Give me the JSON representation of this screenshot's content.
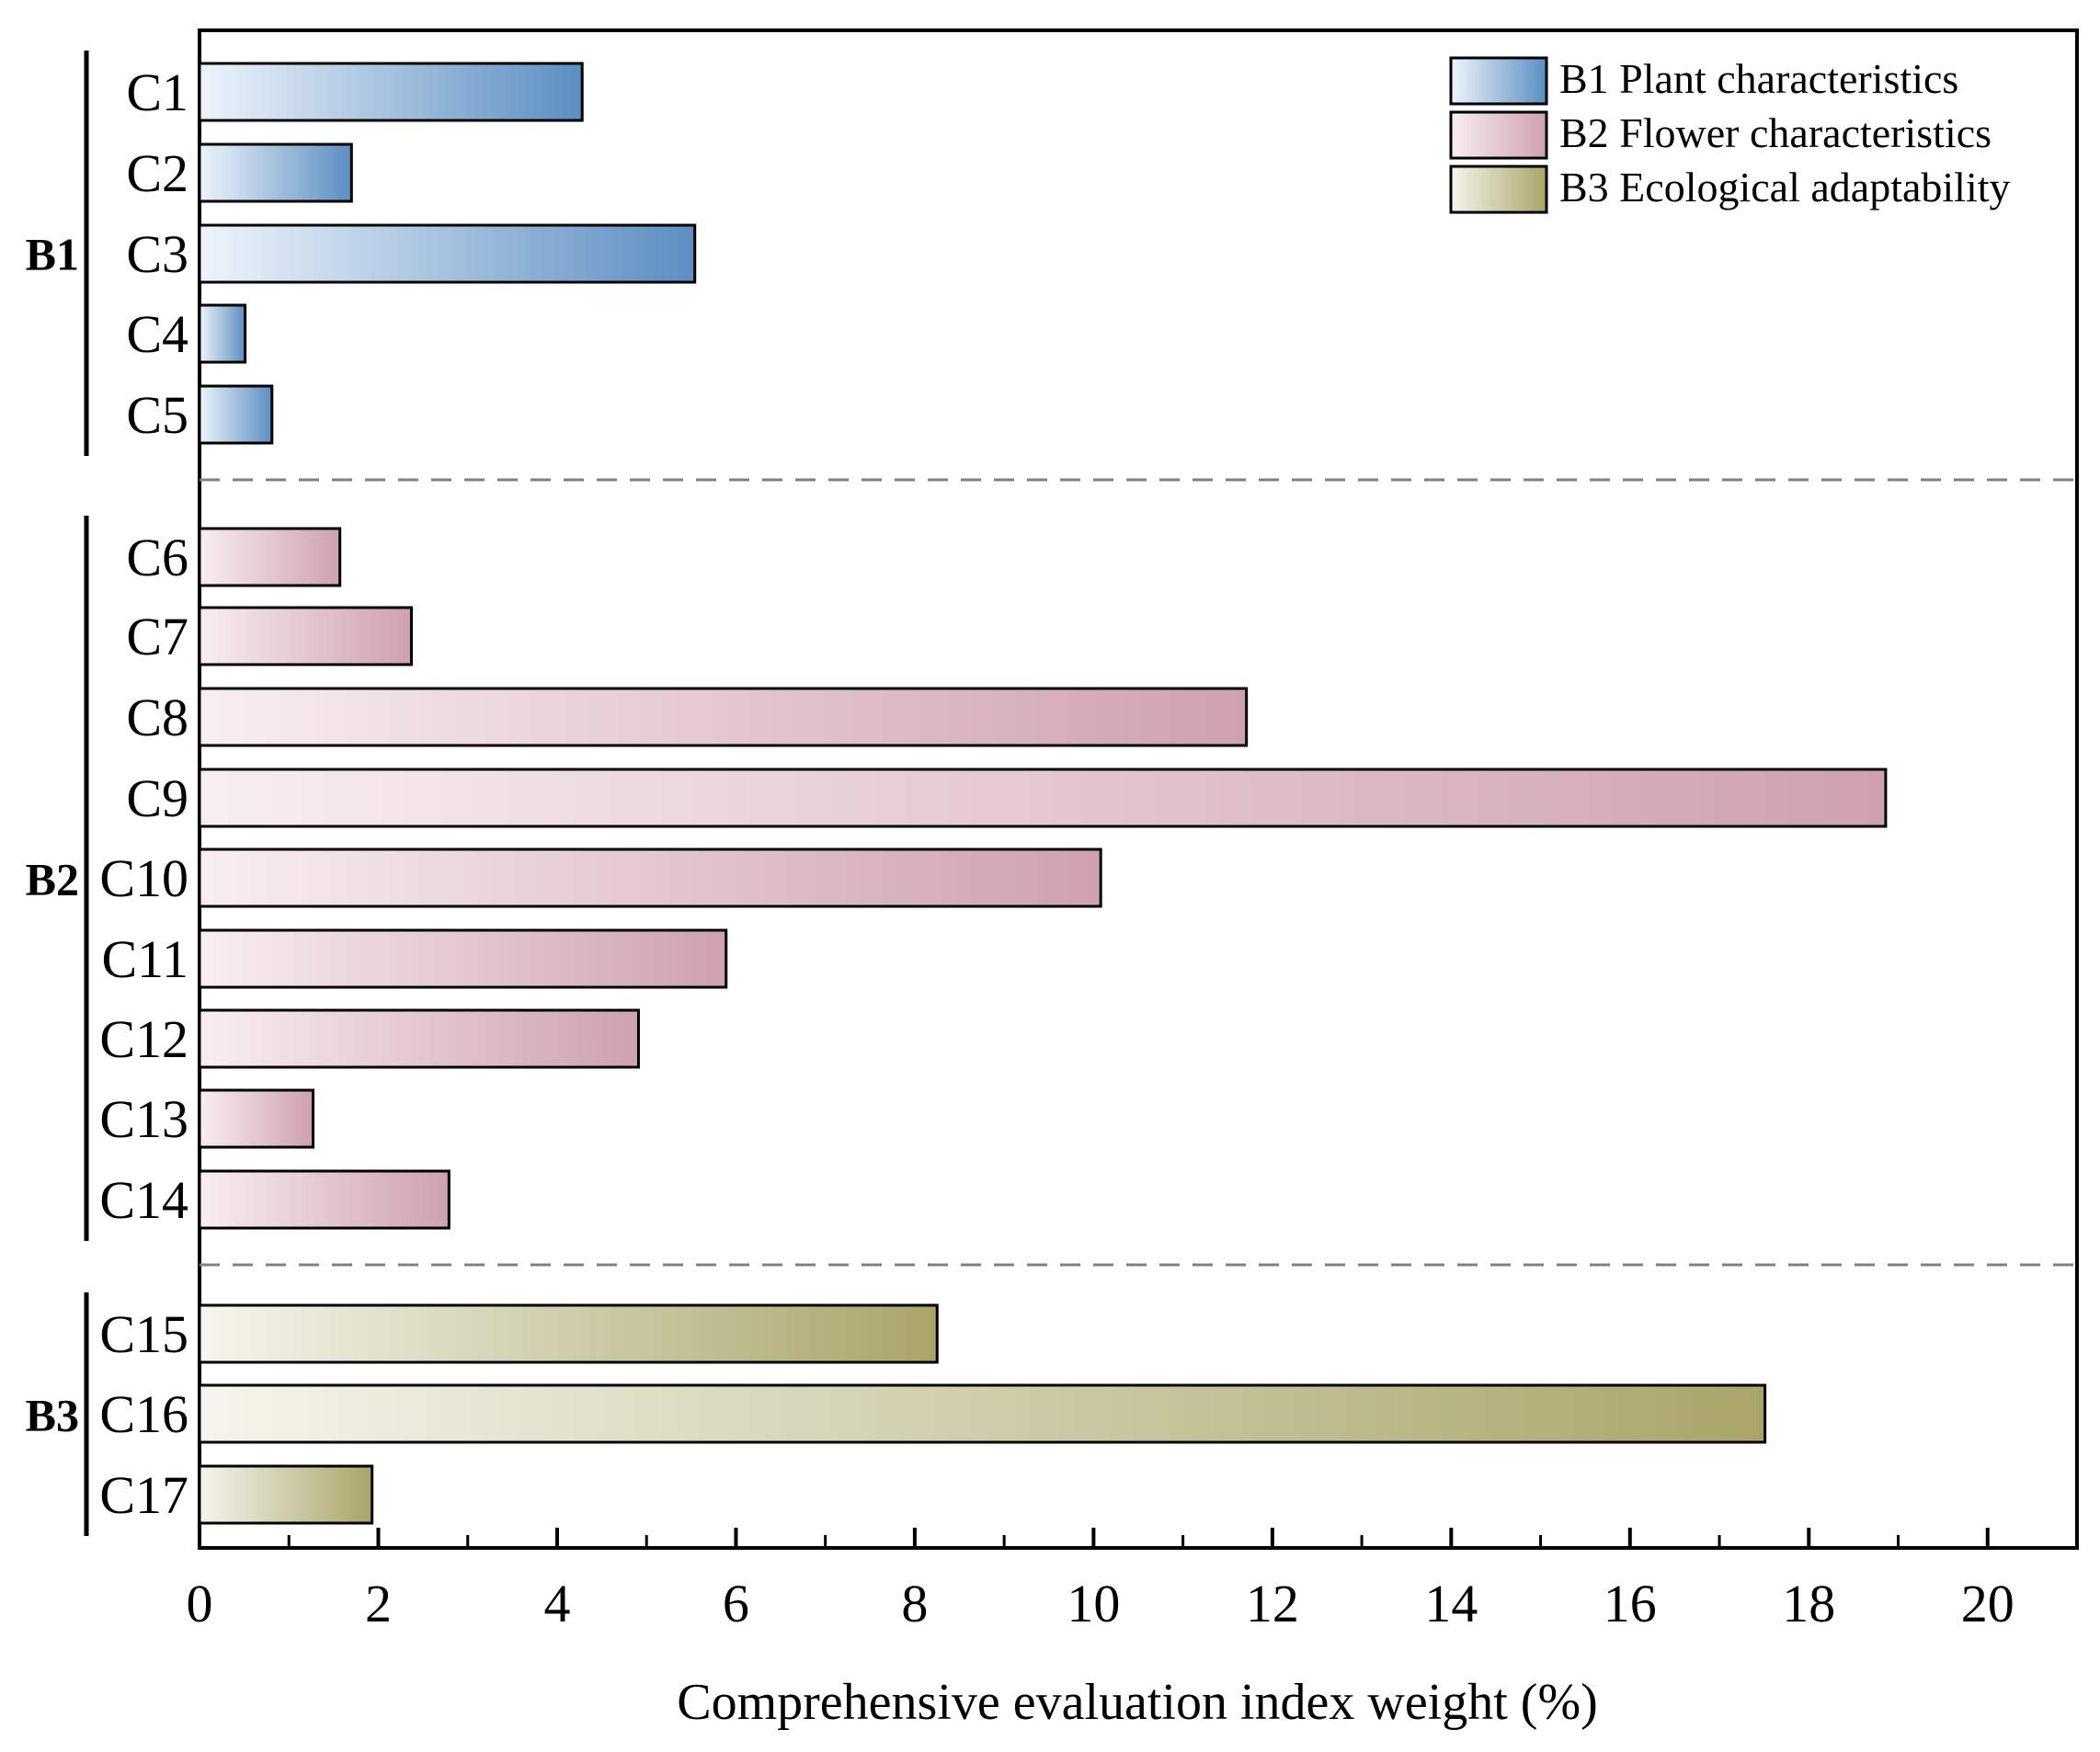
{
  "chart_data": {
    "type": "bar",
    "orientation": "horizontal",
    "title": "",
    "xlabel": "Comprehensive evaluation index weight (%)",
    "ylabel": "",
    "xlim": [
      0,
      21
    ],
    "xticks": [
      0,
      2,
      4,
      6,
      8,
      10,
      12,
      14,
      16,
      18,
      20
    ],
    "grid": false,
    "legend_position": "top-right",
    "groups": [
      {
        "name": "B1",
        "legend": "B1 Plant characteristics",
        "color_light": "#eef4fb",
        "color_dark": "#5b8ec2",
        "categories": [
          "C1",
          "C2",
          "C3",
          "C4",
          "C5"
        ],
        "values": [
          4.28,
          1.7,
          5.54,
          0.51,
          0.81
        ]
      },
      {
        "name": "B2",
        "legend": "B2 Flower characteristics",
        "color_light": "#f8eef2",
        "color_dark": "#cfa0b0",
        "categories": [
          "C6",
          "C7",
          "C8",
          "C9",
          "C10",
          "C11",
          "C12",
          "C13",
          "C14"
        ],
        "values": [
          1.57,
          2.37,
          11.71,
          18.86,
          10.08,
          5.89,
          4.91,
          1.27,
          2.79
        ]
      },
      {
        "name": "B3",
        "legend": "B3 Ecological adaptability",
        "color_light": "#f5f5ec",
        "color_dark": "#a9a56a",
        "categories": [
          "C15",
          "C16",
          "C17"
        ],
        "values": [
          8.25,
          17.51,
          1.93
        ]
      }
    ]
  }
}
